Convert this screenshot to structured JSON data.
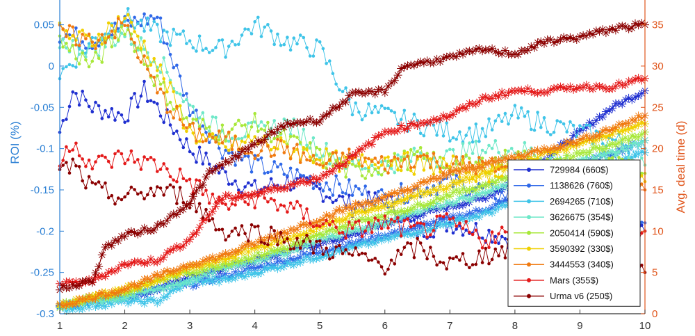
{
  "chart_data": {
    "type": "line",
    "x_ticks": [
      "1",
      "2",
      "3",
      "4",
      "5",
      "6",
      "7",
      "8",
      "9",
      "10"
    ],
    "xlim": [
      1,
      10
    ],
    "y_left": {
      "label": "ROI (%)",
      "ylim": [
        -0.3,
        0.08
      ],
      "ticks": [
        0.05,
        0,
        -0.05,
        -0.1,
        -0.15,
        -0.2,
        -0.25,
        -0.3
      ],
      "tick_labels": [
        "0.05",
        "0",
        "-0.05",
        "-0.1",
        "-0.15",
        "-0.2",
        "-0.25",
        "-0.3"
      ],
      "color": "#2a7fd4"
    },
    "y_right": {
      "label": "Avg. deal time (d)",
      "ylim": [
        0,
        38
      ],
      "ticks": [
        35,
        30,
        25,
        20,
        15,
        10,
        5,
        0
      ],
      "tick_labels": [
        "35",
        "30",
        "25",
        "20",
        "15",
        "10",
        "5",
        "0"
      ],
      "color": "#e0551b"
    },
    "legend": {
      "placement": "lower-right"
    },
    "series": [
      {
        "name": "729984 (660$)",
        "color": "#1f2fd0",
        "roi": {
          "x": [
            1,
            1.2,
            1.5,
            2,
            2.3,
            2.5,
            3,
            3.5,
            4,
            4.5,
            5,
            5.5,
            6,
            6.5,
            7,
            7.5,
            8,
            8.5,
            9,
            9.5,
            10
          ],
          "y": [
            -0.08,
            -0.03,
            -0.05,
            -0.06,
            -0.03,
            -0.05,
            -0.1,
            -0.13,
            -0.15,
            -0.14,
            -0.15,
            -0.17,
            -0.16,
            -0.2,
            -0.19,
            -0.2,
            -0.21,
            -0.21,
            -0.22,
            -0.21,
            -0.2
          ]
        },
        "deal_time": {
          "x": [
            1,
            1.5,
            2,
            2.5,
            3,
            3.5,
            4,
            4.5,
            5,
            5.5,
            6,
            6.5,
            7,
            7.5,
            8,
            8.5,
            9,
            9.5,
            10
          ],
          "y": [
            1,
            1.5,
            2,
            3,
            4.5,
            5.5,
            6.5,
            7.5,
            8.5,
            9.5,
            11,
            12,
            13,
            14,
            16,
            19,
            22,
            25,
            27
          ]
        }
      },
      {
        "name": "1138626 (760$)",
        "color": "#2f68e8",
        "roi": {
          "x": [
            1,
            1.5,
            2,
            2.5,
            3,
            3.5,
            4,
            4.5,
            5,
            5.5,
            6,
            6.5,
            7,
            7.5,
            8,
            8.5,
            9,
            9.5,
            10
          ],
          "y": [
            0.04,
            0.03,
            0.05,
            0.06,
            -0.05,
            -0.1,
            -0.12,
            -0.13,
            -0.14,
            -0.15,
            -0.16,
            -0.15,
            -0.14,
            -0.15,
            -0.16,
            -0.17,
            -0.18,
            -0.18,
            -0.19
          ]
        },
        "deal_time": {
          "x": [
            1,
            1.5,
            2,
            2.5,
            3,
            3.5,
            4,
            4.5,
            5,
            5.5,
            6,
            6.5,
            7,
            7.5,
            8,
            8.5,
            9,
            9.5,
            10
          ],
          "y": [
            1,
            1.5,
            2,
            3,
            3.5,
            4.5,
            5.5,
            6.5,
            7.5,
            8.5,
            9.5,
            10.5,
            11.5,
            12.5,
            14,
            16,
            18,
            19.5,
            21
          ]
        }
      },
      {
        "name": "2694265 (710$)",
        "color": "#3fc4e8",
        "roi": {
          "x": [
            1,
            1.5,
            2,
            2.5,
            3,
            3.5,
            4,
            4.5,
            5,
            5.5,
            6,
            6.5,
            7,
            7.5,
            8,
            8.5,
            9,
            9.5,
            10
          ],
          "y": [
            -0.01,
            0.03,
            0.06,
            0.04,
            0.03,
            0.02,
            0.05,
            0.03,
            0.02,
            -0.05,
            -0.06,
            -0.07,
            -0.08,
            -0.08,
            -0.06,
            -0.07,
            -0.08,
            -0.09,
            -0.1
          ]
        },
        "deal_time": {
          "x": [
            1,
            1.5,
            2,
            2.5,
            3,
            3.5,
            4,
            4.5,
            5,
            5.5,
            6,
            6.5,
            7,
            7.5,
            8,
            8.5,
            9,
            9.5,
            10
          ],
          "y": [
            0.5,
            1,
            1.5,
            1.5,
            4,
            4,
            5,
            6,
            7,
            8,
            9,
            10,
            11,
            12,
            13.5,
            15,
            16.5,
            18,
            19.5
          ]
        }
      },
      {
        "name": "3626675 (354$)",
        "color": "#6ee8c8",
        "roi": {
          "x": [
            1,
            1.5,
            2,
            2.5,
            3,
            3.5,
            4,
            4.5,
            5,
            5.5,
            6,
            6.5,
            7,
            7.5,
            8,
            8.5,
            9,
            9.5,
            10
          ],
          "y": [
            0.03,
            0.02,
            0.04,
            0.01,
            -0.05,
            -0.08,
            -0.08,
            -0.07,
            -0.1,
            -0.12,
            -0.12,
            -0.11,
            -0.11,
            -0.1,
            -0.1,
            -0.11,
            -0.12,
            -0.11,
            -0.12
          ]
        },
        "deal_time": {
          "x": [
            1,
            1.5,
            2,
            2.5,
            3,
            3.5,
            4,
            4.5,
            5,
            5.5,
            6,
            6.5,
            7,
            7.5,
            8,
            8.5,
            9,
            9.5,
            10
          ],
          "y": [
            1,
            1.5,
            2,
            3,
            4,
            5.5,
            6.5,
            7.5,
            9,
            10,
            11,
            12.5,
            13.5,
            14.5,
            16,
            17,
            18.5,
            19.5,
            21
          ]
        }
      },
      {
        "name": "2050414 (590$)",
        "color": "#a8e83a",
        "roi": {
          "x": [
            1,
            1.5,
            2,
            2.5,
            3,
            3.5,
            4,
            4.5,
            5,
            5.5,
            6,
            6.5,
            7,
            7.5,
            8,
            8.5,
            9,
            9.5,
            10
          ],
          "y": [
            0.03,
            0.0,
            0.05,
            -0.02,
            -0.07,
            -0.08,
            -0.07,
            -0.09,
            -0.11,
            -0.13,
            -0.12,
            -0.11,
            -0.12,
            -0.12,
            -0.11,
            -0.12,
            -0.13,
            -0.12,
            -0.13
          ]
        },
        "deal_time": {
          "x": [
            1,
            1.5,
            2,
            2.5,
            3,
            3.5,
            4,
            4.5,
            5,
            5.5,
            6,
            6.5,
            7,
            7.5,
            8,
            8.5,
            9,
            9.5,
            10
          ],
          "y": [
            1,
            2,
            2.5,
            4,
            5,
            6,
            7,
            8,
            9.5,
            11,
            12,
            13,
            14.5,
            15.5,
            17,
            18,
            19.5,
            20.5,
            22
          ]
        }
      },
      {
        "name": "3590392 (330$)",
        "color": "#f0d000",
        "roi": {
          "x": [
            1,
            1.5,
            2,
            2.5,
            3,
            3.5,
            4,
            4.5,
            5,
            5.5,
            6,
            6.5,
            7,
            7.5,
            8,
            8.5,
            9,
            9.5,
            10
          ],
          "y": [
            0.04,
            0.03,
            0.06,
            0.0,
            -0.08,
            -0.1,
            -0.09,
            -0.1,
            -0.11,
            -0.12,
            -0.11,
            -0.12,
            -0.12,
            -0.13,
            -0.12,
            -0.13,
            -0.13,
            -0.14,
            -0.14
          ]
        },
        "deal_time": {
          "x": [
            1,
            1.5,
            2,
            2.5,
            3,
            3.5,
            4,
            4.5,
            5,
            5.5,
            6,
            6.5,
            7,
            7.5,
            8,
            8.5,
            9,
            9.5,
            10
          ],
          "y": [
            1,
            2,
            3,
            4,
            5.5,
            6.5,
            8,
            9,
            10.5,
            12,
            13,
            14.5,
            15.5,
            17,
            18,
            19.5,
            20.5,
            22,
            23
          ]
        }
      },
      {
        "name": "3444553 (340$)",
        "color": "#f07a10",
        "roi": {
          "x": [
            1,
            1.5,
            2,
            2.5,
            3,
            3.5,
            4,
            4.5,
            5,
            5.5,
            6,
            6.5,
            7,
            7.5,
            8,
            8.5,
            9,
            9.5,
            10
          ],
          "y": [
            0.04,
            0.03,
            0.05,
            -0.03,
            -0.08,
            -0.09,
            -0.1,
            -0.1,
            -0.12,
            -0.11,
            -0.12,
            -0.11,
            -0.12,
            -0.12,
            -0.13,
            -0.13,
            -0.14,
            -0.15,
            -0.15
          ]
        },
        "deal_time": {
          "x": [
            1,
            1.5,
            2,
            2.5,
            3,
            3.5,
            4,
            4.5,
            5,
            5.5,
            6,
            6.5,
            7,
            7.5,
            8,
            8.5,
            9,
            9.5,
            10
          ],
          "y": [
            1,
            2,
            3,
            4.5,
            6,
            7,
            8.5,
            10,
            11.5,
            13,
            14,
            15.5,
            17,
            18,
            19,
            20,
            21,
            22.5,
            24
          ]
        }
      },
      {
        "name": "Mars (355$)",
        "color": "#e41a1a",
        "roi": {
          "x": [
            1,
            1.2,
            1.5,
            2,
            2.5,
            3,
            3.5,
            4,
            4.5,
            5,
            5.5,
            6,
            6.5,
            7,
            7.5,
            8,
            8.5,
            9,
            9.5,
            10
          ],
          "y": [
            -0.12,
            -0.09,
            -0.12,
            -0.11,
            -0.12,
            -0.14,
            -0.17,
            -0.16,
            -0.17,
            -0.19,
            -0.2,
            -0.19,
            -0.2,
            -0.19,
            -0.21,
            -0.2,
            -0.22,
            -0.22,
            -0.21,
            -0.2
          ]
        },
        "deal_time": {
          "x": [
            1,
            1.5,
            2,
            2.5,
            3,
            3.5,
            4,
            4.5,
            5,
            5.5,
            6,
            6.5,
            7,
            7.5,
            8,
            8.5,
            9,
            9.5,
            10
          ],
          "y": [
            3.5,
            4,
            6,
            6.5,
            9,
            14,
            14.5,
            15.5,
            16.5,
            19,
            22,
            23,
            24,
            26,
            27,
            27,
            27.5,
            27.5,
            28.5
          ]
        }
      },
      {
        "name": "Urma v6 (250$)",
        "color": "#8b0000",
        "roi": {
          "x": [
            1,
            1.2,
            1.5,
            2,
            2.5,
            3,
            3.5,
            4,
            4.5,
            5,
            5.5,
            6,
            6.5,
            7,
            7.5,
            8,
            8.5,
            9,
            9.5,
            10
          ],
          "y": [
            -0.13,
            -0.12,
            -0.15,
            -0.16,
            -0.15,
            -0.16,
            -0.2,
            -0.2,
            -0.21,
            -0.22,
            -0.23,
            -0.24,
            -0.22,
            -0.24,
            -0.23,
            -0.22,
            -0.21,
            -0.22,
            -0.23,
            -0.25
          ]
        },
        "deal_time": {
          "x": [
            1,
            1.5,
            1.7,
            2,
            2.5,
            3,
            3.3,
            4,
            4.5,
            5,
            5.5,
            6,
            6.3,
            7,
            7.5,
            8,
            8.5,
            9,
            9.5,
            10
          ],
          "y": [
            3,
            4,
            8,
            9.5,
            10.5,
            13.5,
            17,
            20.5,
            23,
            23.5,
            26.5,
            27,
            30,
            31,
            32,
            31.5,
            33,
            33.5,
            34.5,
            35
          ]
        }
      }
    ]
  }
}
